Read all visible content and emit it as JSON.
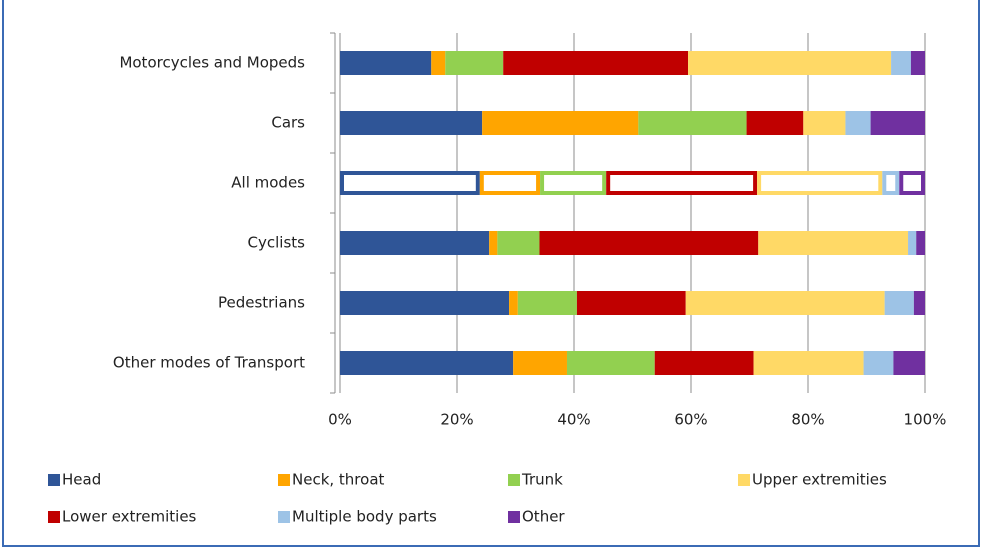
{
  "chart_data": {
    "type": "stacked-bar-horizontal",
    "categories": [
      "Motorcycles and Mopeds",
      "Cars",
      "All modes",
      "Cyclists",
      "Pedestrians",
      "Other modes of Transport"
    ],
    "outlined_category": "All modes",
    "series": [
      {
        "name": "Head",
        "color": "#2f5597",
        "values": [
          15.6,
          24.3,
          23.9,
          25.5,
          28.9,
          29.6
        ]
      },
      {
        "name": "Neck, throat",
        "color": "#ffa500",
        "values": [
          2.4,
          26.7,
          10.3,
          1.4,
          1.5,
          9.2
        ]
      },
      {
        "name": "Trunk",
        "color": "#92d050",
        "values": [
          9.9,
          18.5,
          11.3,
          7.2,
          10.1,
          15.0
        ]
      },
      {
        "name": "Lower extremities",
        "color": "#c00000",
        "values": [
          31.6,
          9.7,
          25.8,
          37.4,
          18.6,
          16.9
        ]
      },
      {
        "name": "Upper extremities",
        "color": "#ffd966",
        "values": [
          34.7,
          7.2,
          21.4,
          25.6,
          34.0,
          18.8
        ]
      },
      {
        "name": "Multiple body parts",
        "color": "#9dc3e6",
        "values": [
          3.4,
          4.3,
          2.9,
          1.4,
          5.0,
          5.1
        ]
      },
      {
        "name": "Other",
        "color": "#7030a0",
        "values": [
          2.4,
          9.3,
          4.4,
          1.5,
          1.9,
          5.4
        ]
      }
    ],
    "xlim": [
      0,
      100
    ],
    "xticks": [
      {
        "value": 0,
        "label": "0%"
      },
      {
        "value": 20,
        "label": "20%"
      },
      {
        "value": 40,
        "label": "40%"
      },
      {
        "value": 60,
        "label": "60%"
      },
      {
        "value": 80,
        "label": "80%"
      },
      {
        "value": 100,
        "label": "100%"
      }
    ],
    "grid": true
  }
}
